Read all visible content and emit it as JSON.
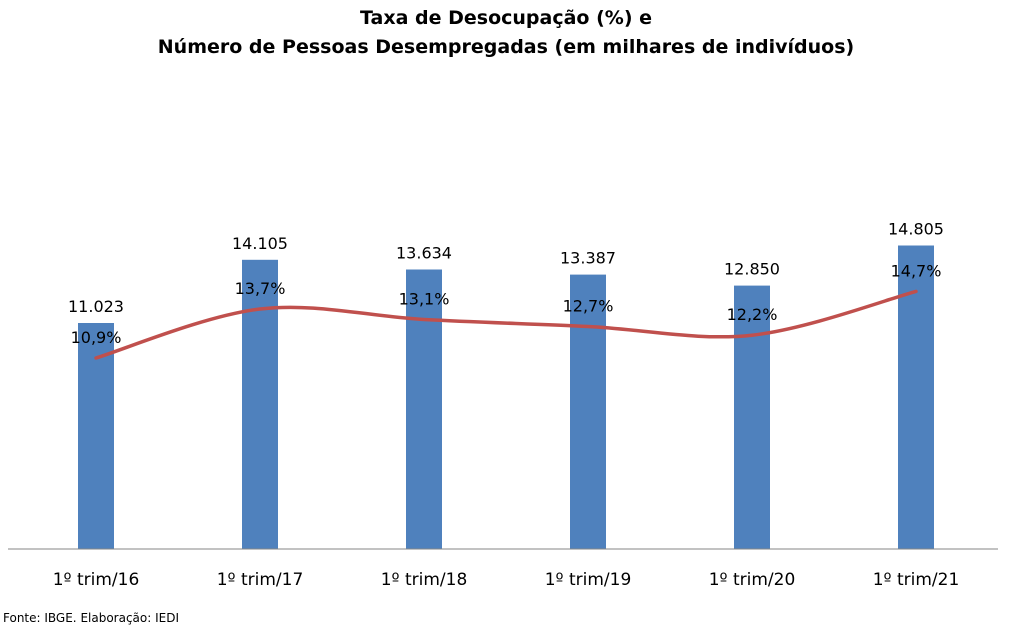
{
  "chart_data": {
    "type": "bar",
    "title": "Taxa de Desocupação (%) e",
    "subtitle": "Número de Pessoas Desempregadas (em milhares de indivíduos)",
    "categories": [
      "1º trim/16",
      "1º trim/17",
      "1º trim/18",
      "1º trim/19",
      "1º trim/20",
      "1º trim/21"
    ],
    "series": [
      {
        "kind": "bar",
        "values": [
          11023,
          14105,
          13634,
          13387,
          12850,
          14805
        ],
        "value_labels": [
          "11.023",
          "14.105",
          "13.634",
          "13.387",
          "12.850",
          "14.805"
        ],
        "color": "#4f81bd"
      },
      {
        "kind": "line",
        "values": [
          10.9,
          13.7,
          13.1,
          12.7,
          12.2,
          14.7
        ],
        "value_labels": [
          "10,9%",
          "13,7%",
          "13,1%",
          "12,7%",
          "12,2%",
          "14,7%"
        ],
        "color": "#c0504d",
        "smooth": true
      }
    ],
    "bar_axis_range": [
      0,
      20000
    ],
    "line_axis_range": [
      0,
      23.4
    ],
    "legend": "none",
    "grid": false,
    "axes_visible": false,
    "xlabel": "",
    "ylabel": ""
  },
  "source_note": "Fonte: IBGE. Elaboração: IEDI",
  "colors": {
    "bar": "#4f81bd",
    "line": "#c0504d",
    "axis": "#868686",
    "text": "#000000",
    "background": "#ffffff"
  }
}
